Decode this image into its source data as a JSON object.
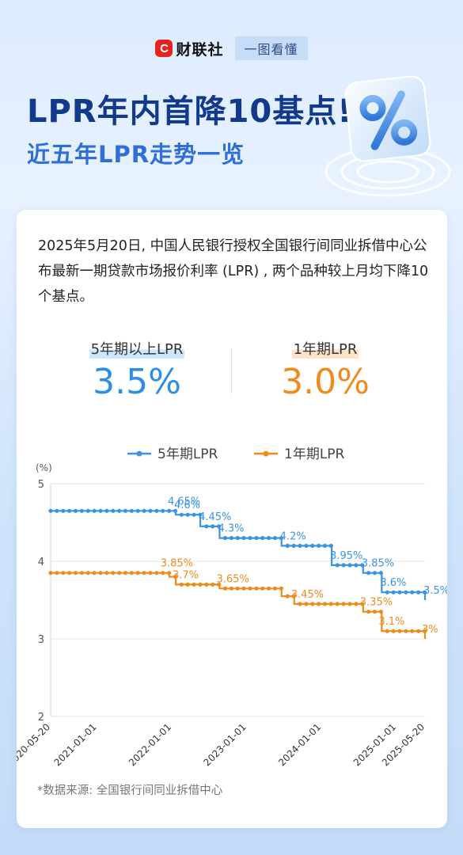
{
  "header": {
    "brand_logo": "C",
    "brand_name": "财联社",
    "tag": "一图看懂",
    "title": "LPR年内首降10基点!",
    "subtitle": "近五年LPR走势一览",
    "deco_icon": "percent-icon"
  },
  "intro": "2025年5月20日, 中国人民银行授权全国银行间同业拆借中心公布最新一期贷款市场报价利率 (LPR) , 两个品种较上月均下降10个基点。",
  "kpis": [
    {
      "label": "5年期以上LPR",
      "value": "3.5%",
      "color": "#2e8ee6"
    },
    {
      "label": "1年期LPR",
      "value": "3.0%",
      "color": "#f08a1e"
    }
  ],
  "chart_data": {
    "type": "line",
    "step": true,
    "ylabel": "(%)",
    "ylim": [
      2,
      5
    ],
    "yticks": [
      2,
      3,
      4,
      5
    ],
    "xlim": [
      "2020-05-20",
      "2025-05-20"
    ],
    "xtick_labels": [
      "2020-05-20",
      "2021-01-01",
      "2022-01-01",
      "2023-01-01",
      "2024-01-01",
      "2025-01-01",
      "2025-05-20"
    ],
    "grid": true,
    "legend": "top",
    "series": [
      {
        "name": "5年期LPR",
        "color": "#3a93e3",
        "points": [
          [
            "2020-05-20",
            4.65
          ],
          [
            "2021-12-20",
            4.65
          ],
          [
            "2022-01-20",
            4.6
          ],
          [
            "2022-05-20",
            4.45
          ],
          [
            "2022-08-22",
            4.3
          ],
          [
            "2023-06-20",
            4.2
          ],
          [
            "2024-02-20",
            3.95
          ],
          [
            "2024-07-22",
            3.85
          ],
          [
            "2024-10-21",
            3.6
          ],
          [
            "2025-05-20",
            3.5
          ]
        ],
        "labels": [
          {
            "text": "4.65%",
            "x": "2021-12-20",
            "y": 4.65
          },
          {
            "text": "4.6%",
            "x": "2022-01-20",
            "y": 4.6
          },
          {
            "text": "4.45%",
            "x": "2022-05-20",
            "y": 4.45
          },
          {
            "text": "4.3%",
            "x": "2022-08-22",
            "y": 4.3
          },
          {
            "text": "4.2%",
            "x": "2023-06-20",
            "y": 4.2
          },
          {
            "text": "3.95%",
            "x": "2024-02-20",
            "y": 3.95
          },
          {
            "text": "3.85%",
            "x": "2024-07-22",
            "y": 3.85
          },
          {
            "text": "3.6%",
            "x": "2024-10-21",
            "y": 3.6
          },
          {
            "text": "3.5%",
            "x": "2025-05-20",
            "y": 3.5
          }
        ]
      },
      {
        "name": "1年期LPR",
        "color": "#ef8a1c",
        "points": [
          [
            "2020-05-20",
            3.85
          ],
          [
            "2021-11-22",
            3.85
          ],
          [
            "2021-12-20",
            3.8
          ],
          [
            "2022-01-20",
            3.7
          ],
          [
            "2022-08-22",
            3.65
          ],
          [
            "2023-06-20",
            3.55
          ],
          [
            "2023-08-21",
            3.45
          ],
          [
            "2024-07-22",
            3.35
          ],
          [
            "2024-10-21",
            3.1
          ],
          [
            "2025-05-20",
            3.0
          ]
        ],
        "labels": [
          {
            "text": "3.85%",
            "x": "2021-11-22",
            "y": 3.85
          },
          {
            "text": "3.7%",
            "x": "2022-01-20",
            "y": 3.7
          },
          {
            "text": "3.65%",
            "x": "2022-08-22",
            "y": 3.65
          },
          {
            "text": "3.45%",
            "x": "2023-08-21",
            "y": 3.45
          },
          {
            "text": "3.35%",
            "x": "2024-07-22",
            "y": 3.35
          },
          {
            "text": "3.1%",
            "x": "2024-10-21",
            "y": 3.1
          },
          {
            "text": "3%",
            "x": "2025-05-20",
            "y": 3.0
          }
        ]
      }
    ]
  },
  "source": "*数据来源: 全国银行间同业拆借中心"
}
